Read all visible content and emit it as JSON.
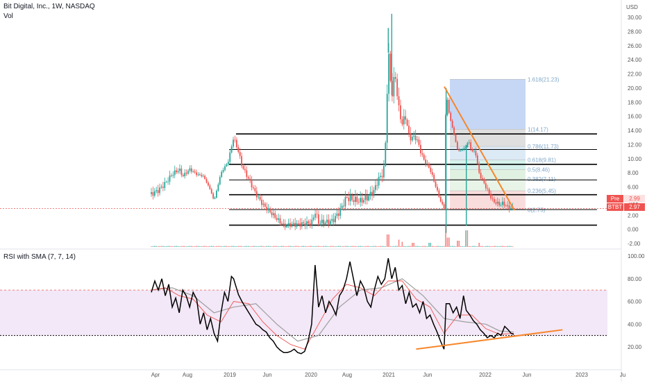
{
  "header": {
    "title": "Bit Digital, Inc., 1W, NASDAQ",
    "vol_label": "Vol",
    "currency": "USD"
  },
  "rsi_title": "RSI with SMA (7, 7, 14)",
  "badges": {
    "pre_label": "Pre",
    "pre_value": "2.99",
    "ticker_label": "BTBT",
    "ticker_value": "2.97"
  },
  "colors": {
    "up": "#26a69a",
    "down": "#ef5350",
    "trend": "#f7862a",
    "rsi_line": "#000000",
    "rsi_sma": "#ef5350",
    "rsi_sma2": "#9e9e9e",
    "rsi_band": "#f3e8f7"
  },
  "chart_data": [
    {
      "type": "candlestick",
      "title": "Bit Digital, Inc., 1W, NASDAQ",
      "y_axis_ticks": [
        "30.00",
        "28.00",
        "26.00",
        "24.00",
        "22.00",
        "20.00",
        "18.00",
        "16.00",
        "14.00",
        "12.00",
        "10.00",
        "8.00",
        "6.00",
        "4.00",
        "2.00",
        "0.00",
        "-2.00"
      ],
      "y_range": [
        -2,
        30
      ],
      "x_axis_ticks": [
        "Apr",
        "Aug",
        "2019",
        "Jun",
        "2020",
        "Aug",
        "2021",
        "Jun",
        "2022",
        "Jun",
        "2023",
        "Ju"
      ],
      "price_path": [
        [
          0,
          5
        ],
        [
          10,
          5.5
        ],
        [
          20,
          6.5
        ],
        [
          30,
          7.8
        ],
        [
          40,
          8.5
        ],
        [
          45,
          7.5
        ],
        [
          55,
          8.5
        ],
        [
          65,
          7.8
        ],
        [
          75,
          7.5
        ],
        [
          85,
          5.5
        ],
        [
          90,
          4
        ],
        [
          95,
          6
        ],
        [
          100,
          8
        ],
        [
          110,
          9.5
        ],
        [
          118,
          13
        ],
        [
          125,
          11
        ],
        [
          130,
          9
        ],
        [
          140,
          7
        ],
        [
          150,
          5
        ],
        [
          160,
          3.5
        ],
        [
          170,
          2.5
        ],
        [
          180,
          1.5
        ],
        [
          190,
          0.5
        ],
        [
          200,
          0.7
        ],
        [
          210,
          0.7
        ],
        [
          220,
          0.8
        ],
        [
          230,
          0.9
        ],
        [
          235,
          2.5
        ],
        [
          240,
          1
        ],
        [
          250,
          1
        ],
        [
          260,
          1.2
        ],
        [
          270,
          2.5
        ],
        [
          280,
          4.5
        ],
        [
          290,
          4.2
        ],
        [
          300,
          4
        ],
        [
          310,
          4.5
        ],
        [
          320,
          5.5
        ],
        [
          325,
          7
        ],
        [
          330,
          7.5
        ],
        [
          335,
          9
        ],
        [
          340,
          25
        ],
        [
          345,
          19
        ],
        [
          350,
          22
        ],
        [
          355,
          17
        ],
        [
          360,
          15
        ],
        [
          365,
          16
        ],
        [
          370,
          13
        ],
        [
          380,
          13
        ],
        [
          390,
          10
        ],
        [
          400,
          8.5
        ],
        [
          410,
          5.5
        ],
        [
          415,
          4
        ],
        [
          420,
          3
        ],
        [
          423,
          19.5
        ],
        [
          428,
          16
        ],
        [
          433,
          14
        ],
        [
          440,
          11
        ],
        [
          450,
          11.5
        ],
        [
          455,
          12.5
        ],
        [
          460,
          11
        ],
        [
          465,
          11
        ],
        [
          470,
          8
        ],
        [
          480,
          6
        ],
        [
          490,
          4
        ],
        [
          500,
          3.5
        ],
        [
          505,
          3.7
        ],
        [
          510,
          3.2
        ],
        [
          515,
          3
        ],
        [
          520,
          2.97
        ]
      ],
      "volume_spikes": [
        {
          "x": 340,
          "v": 0.6
        },
        {
          "x": 355,
          "v": 0.35
        },
        {
          "x": 422,
          "v": 1.0
        },
        {
          "x": 426,
          "v": 0.45
        },
        {
          "x": 452,
          "v": 0.8
        },
        {
          "x": 360,
          "v": 0.25
        },
        {
          "x": 375,
          "v": 0.2
        },
        {
          "x": 400,
          "v": 0.2
        },
        {
          "x": 440,
          "v": 0.3
        },
        {
          "x": 470,
          "v": 0.2
        }
      ],
      "fib_levels": [
        {
          "label": "1.618(21.23)",
          "value": 21.23,
          "color": "#bcd0f5"
        },
        {
          "label": "1(14.17)",
          "value": 14.17,
          "color": "#d9d9d9"
        },
        {
          "label": "0.786(11.73)",
          "value": 11.73,
          "color": "#d6e6f5"
        },
        {
          "label": "0.618(9.81)",
          "value": 9.81,
          "color": "#cfeee8"
        },
        {
          "label": "0.5(8.46)",
          "value": 8.46,
          "color": "#dcefdc"
        },
        {
          "label": "0.382(7.11)",
          "value": 7.11,
          "color": "#e3f2e3"
        },
        {
          "label": "0.236(5.45)",
          "value": 5.45,
          "color": "#f8d7d7"
        },
        {
          "label": "0(2.75)",
          "value": 2.75,
          "color": "#f5c4c4"
        }
      ],
      "horizontal_levels": [
        13.5,
        11.3,
        9.2,
        7.0,
        4.9,
        2.8,
        0.6
      ],
      "current_price": 2.97
    },
    {
      "type": "line",
      "title": "RSI with SMA (7, 7, 14)",
      "y_axis_ticks": [
        "100.00",
        "80.00",
        "60.00",
        "40.00",
        "20.00"
      ],
      "y_range": [
        10,
        100
      ],
      "overbought": 70,
      "oversold": 30,
      "rsi_path": [
        [
          0,
          68
        ],
        [
          5,
          78
        ],
        [
          10,
          70
        ],
        [
          15,
          80
        ],
        [
          20,
          65
        ],
        [
          25,
          75
        ],
        [
          30,
          55
        ],
        [
          35,
          63
        ],
        [
          40,
          50
        ],
        [
          45,
          70
        ],
        [
          50,
          65
        ],
        [
          55,
          55
        ],
        [
          60,
          68
        ],
        [
          65,
          62
        ],
        [
          70,
          40
        ],
        [
          75,
          50
        ],
        [
          80,
          35
        ],
        [
          85,
          45
        ],
        [
          90,
          32
        ],
        [
          95,
          25
        ],
        [
          100,
          50
        ],
        [
          105,
          68
        ],
        [
          110,
          60
        ],
        [
          115,
          82
        ],
        [
          118,
          80
        ],
        [
          125,
          66
        ],
        [
          130,
          60
        ],
        [
          135,
          55
        ],
        [
          140,
          50
        ],
        [
          145,
          45
        ],
        [
          150,
          40
        ],
        [
          155,
          38
        ],
        [
          160,
          35
        ],
        [
          165,
          33
        ],
        [
          170,
          28
        ],
        [
          175,
          25
        ],
        [
          180,
          20
        ],
        [
          185,
          17
        ],
        [
          190,
          15
        ],
        [
          195,
          15
        ],
        [
          200,
          16
        ],
        [
          205,
          18
        ],
        [
          210,
          15
        ],
        [
          215,
          14
        ],
        [
          220,
          16
        ],
        [
          225,
          25
        ],
        [
          230,
          40
        ],
        [
          235,
          92
        ],
        [
          240,
          55
        ],
        [
          245,
          65
        ],
        [
          250,
          50
        ],
        [
          255,
          60
        ],
        [
          260,
          55
        ],
        [
          265,
          48
        ],
        [
          270,
          65
        ],
        [
          275,
          70
        ],
        [
          280,
          80
        ],
        [
          285,
          95
        ],
        [
          290,
          80
        ],
        [
          295,
          65
        ],
        [
          300,
          78
        ],
        [
          305,
          72
        ],
        [
          310,
          60
        ],
        [
          315,
          55
        ],
        [
          320,
          70
        ],
        [
          325,
          82
        ],
        [
          330,
          75
        ],
        [
          335,
          80
        ],
        [
          340,
          98
        ],
        [
          345,
          80
        ],
        [
          350,
          90
        ],
        [
          355,
          70
        ],
        [
          360,
          74
        ],
        [
          365,
          58
        ],
        [
          370,
          68
        ],
        [
          375,
          55
        ],
        [
          380,
          58
        ],
        [
          385,
          50
        ],
        [
          390,
          60
        ],
        [
          395,
          45
        ],
        [
          400,
          48
        ],
        [
          405,
          40
        ],
        [
          410,
          33
        ],
        [
          415,
          25
        ],
        [
          420,
          18
        ],
        [
          423,
          58
        ],
        [
          428,
          58
        ],
        [
          433,
          50
        ],
        [
          438,
          55
        ],
        [
          443,
          45
        ],
        [
          448,
          65
        ],
        [
          452,
          52
        ],
        [
          457,
          48
        ],
        [
          462,
          43
        ],
        [
          467,
          40
        ],
        [
          472,
          35
        ],
        [
          477,
          32
        ],
        [
          482,
          28
        ],
        [
          487,
          30
        ],
        [
          492,
          28
        ],
        [
          497,
          32
        ],
        [
          502,
          30
        ],
        [
          507,
          38
        ],
        [
          512,
          35
        ],
        [
          516,
          32
        ],
        [
          520,
          31
        ]
      ],
      "sma_path": [
        [
          0,
          70
        ],
        [
          20,
          72
        ],
        [
          40,
          65
        ],
        [
          60,
          62
        ],
        [
          80,
          48
        ],
        [
          100,
          42
        ],
        [
          118,
          60
        ],
        [
          140,
          58
        ],
        [
          160,
          42
        ],
        [
          180,
          30
        ],
        [
          200,
          22
        ],
        [
          220,
          18
        ],
        [
          240,
          40
        ],
        [
          260,
          62
        ],
        [
          280,
          75
        ],
        [
          300,
          72
        ],
        [
          320,
          65
        ],
        [
          340,
          78
        ],
        [
          360,
          78
        ],
        [
          380,
          62
        ],
        [
          400,
          55
        ],
        [
          420,
          32
        ],
        [
          440,
          48
        ],
        [
          460,
          48
        ],
        [
          480,
          36
        ],
        [
          500,
          31
        ],
        [
          520,
          32
        ]
      ],
      "sma2_path": [
        [
          0,
          70
        ],
        [
          30,
          72
        ],
        [
          60,
          65
        ],
        [
          90,
          50
        ],
        [
          118,
          55
        ],
        [
          150,
          58
        ],
        [
          180,
          40
        ],
        [
          210,
          25
        ],
        [
          240,
          30
        ],
        [
          270,
          55
        ],
        [
          300,
          70
        ],
        [
          330,
          72
        ],
        [
          360,
          80
        ],
        [
          390,
          65
        ],
        [
          420,
          45
        ],
        [
          450,
          42
        ],
        [
          480,
          40
        ],
        [
          500,
          34
        ],
        [
          520,
          33
        ]
      ],
      "support_line": [
        [
          380,
          18
        ],
        [
          590,
          35
        ]
      ]
    }
  ]
}
